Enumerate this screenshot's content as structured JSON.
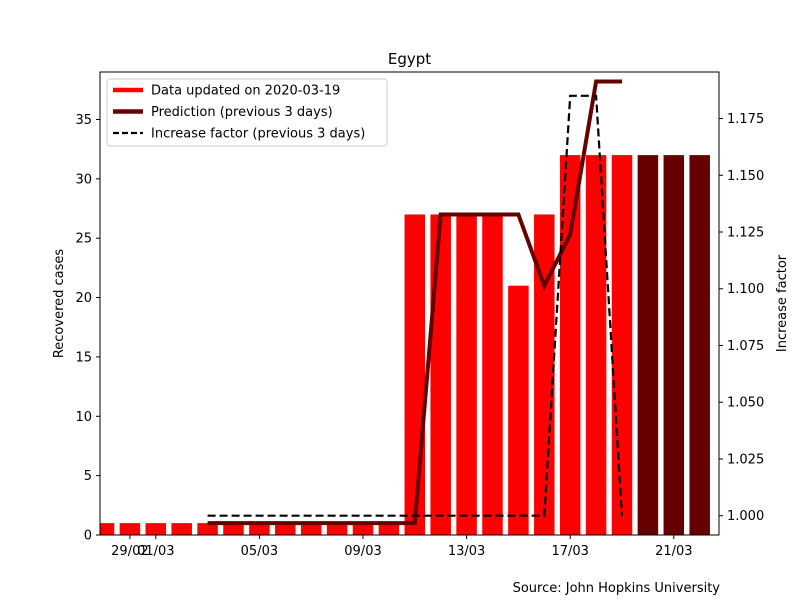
{
  "chart_data": {
    "type": "bar",
    "title": "Egypt",
    "xlabel": "",
    "ylabel": "Recovered cases",
    "ylabel_right": "Increase factor",
    "source": "Source: John Hopkins University",
    "dates": [
      "28/02",
      "29/02",
      "01/03",
      "02/03",
      "03/03",
      "04/03",
      "05/03",
      "06/03",
      "07/03",
      "08/03",
      "09/03",
      "10/03",
      "11/03",
      "12/03",
      "13/03",
      "14/03",
      "15/03",
      "16/03",
      "17/03",
      "18/03",
      "19/03",
      "20/03",
      "21/03",
      "22/03"
    ],
    "x_tick_labels": [
      "29/02",
      "01/03",
      "05/03",
      "09/03",
      "13/03",
      "17/03",
      "21/03"
    ],
    "ylim": [
      0,
      39
    ],
    "yticks": [
      0,
      5,
      10,
      15,
      20,
      25,
      30,
      35
    ],
    "ylim_right": [
      0.9915,
      1.1955
    ],
    "yticks_right": [
      "1.000",
      "1.025",
      "1.050",
      "1.075",
      "1.100",
      "1.125",
      "1.150",
      "1.175"
    ],
    "grid": false,
    "legend_position": "top-left",
    "series": [
      {
        "name": "Data updated on 2020-03-19",
        "kind": "bar",
        "color": "#ff0000",
        "x": [
          "28/02",
          "29/02",
          "01/03",
          "02/03",
          "03/03",
          "04/03",
          "05/03",
          "06/03",
          "07/03",
          "08/03",
          "09/03",
          "10/03",
          "11/03",
          "12/03",
          "13/03",
          "14/03",
          "15/03",
          "16/03",
          "17/03",
          "18/03",
          "19/03"
        ],
        "values": [
          1,
          1,
          1,
          1,
          1,
          1,
          1,
          1,
          1,
          1,
          1,
          1,
          27,
          27,
          27,
          27,
          21,
          27,
          32,
          32,
          32
        ]
      },
      {
        "name": "Prediction (previous 3 days)",
        "kind": "bar+line",
        "color": "#660000",
        "bars_x": [
          "20/03",
          "21/03",
          "22/03"
        ],
        "bars_values": [
          32,
          32,
          32
        ],
        "line_x": [
          "03/03",
          "04/03",
          "05/03",
          "06/03",
          "07/03",
          "08/03",
          "09/03",
          "10/03",
          "11/03",
          "12/03",
          "13/03",
          "14/03",
          "15/03",
          "16/03",
          "17/03",
          "18/03",
          "19/03"
        ],
        "line_values": [
          1,
          1,
          1,
          1,
          1,
          1,
          1,
          1,
          1,
          27,
          27,
          27,
          27,
          21,
          25.3,
          38.2,
          38.2
        ]
      },
      {
        "name": "Increase factor (previous 3 days)",
        "kind": "line",
        "axis": "right",
        "color": "#000000",
        "dashed": true,
        "x": [
          "03/03",
          "04/03",
          "05/03",
          "06/03",
          "07/03",
          "08/03",
          "09/03",
          "10/03",
          "11/03",
          "12/03",
          "13/03",
          "14/03",
          "15/03",
          "16/03",
          "17/03",
          "18/03",
          "19/03"
        ],
        "values": [
          1,
          1,
          1,
          1,
          1,
          1,
          1,
          1,
          1,
          1,
          1,
          1,
          1,
          1,
          1.185,
          1.185,
          1
        ]
      }
    ]
  }
}
